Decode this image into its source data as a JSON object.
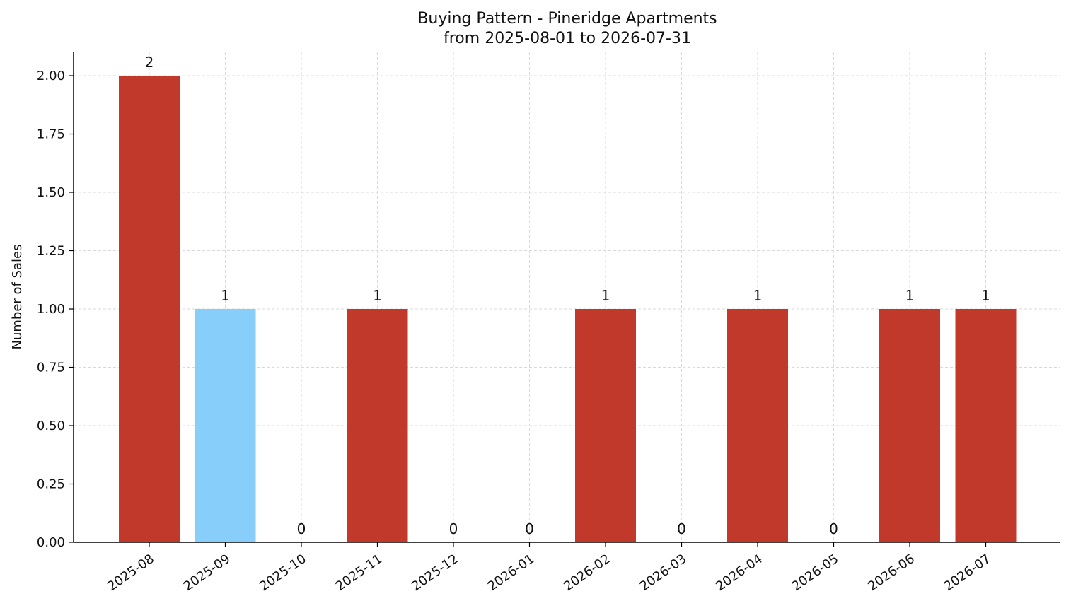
{
  "chart_data": {
    "type": "bar",
    "title": "Buying Pattern - Pineridge Apartments",
    "subtitle": "from 2025-08-01 to 2026-07-31",
    "xlabel": "",
    "ylabel": "Number of Sales",
    "categories": [
      "2025-08",
      "2025-09",
      "2025-10",
      "2025-11",
      "2025-12",
      "2026-01",
      "2026-02",
      "2026-03",
      "2026-04",
      "2026-05",
      "2026-06",
      "2026-07"
    ],
    "values": [
      2,
      1,
      0,
      1,
      0,
      0,
      1,
      0,
      1,
      0,
      1,
      1
    ],
    "data_labels": [
      "2",
      "1",
      "0",
      "1",
      "0",
      "0",
      "1",
      "0",
      "1",
      "0",
      "1",
      "1"
    ],
    "bar_colors": [
      "#c0392b",
      "#87cefa",
      "#c0392b",
      "#c0392b",
      "#c0392b",
      "#c0392b",
      "#c0392b",
      "#c0392b",
      "#c0392b",
      "#c0392b",
      "#c0392b",
      "#c0392b"
    ],
    "ylim": [
      0,
      2.1
    ],
    "yticks": [
      0,
      0.25,
      0.5,
      0.75,
      1.0,
      1.25,
      1.5,
      1.75,
      2.0
    ],
    "ytick_labels": [
      "0.00",
      "0.25",
      "0.50",
      "0.75",
      "1.00",
      "1.25",
      "1.50",
      "1.75",
      "2.00"
    ],
    "grid": true,
    "grid_color": "#d9d9d9",
    "axis_color": "#000000",
    "x_tick_rotation_deg": 35
  }
}
